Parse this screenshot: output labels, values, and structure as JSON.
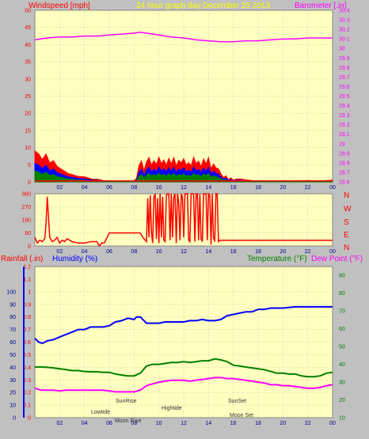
{
  "panel1": {
    "left_label": "Windspeed [mph]",
    "title": "24 hour graph day   December 25 2013",
    "right_label": "Barometer [.in]"
  },
  "panel2": {
    "compass": [
      "N",
      "W",
      "S",
      "E",
      "N"
    ]
  },
  "panel3": {
    "label_rainfall": "Rainfall (.in)",
    "label_humidity": "Humidity (%)",
    "label_temperature": "Temperature (°F)",
    "label_dewpoint": "Dew Point (°F)",
    "events": [
      "Lowtide",
      "SunRise",
      "Moon Rise",
      "Hightide",
      "SunSet",
      "Moon Set"
    ]
  },
  "colors": {
    "plot_bg": "#ffffc0",
    "wind": "#ff0000",
    "gust_mid": "#0000ff",
    "gust_low": "#008000",
    "barometer": "#ff00ff",
    "humidity": "#0000ff",
    "temperature": "#008000",
    "dewpoint": "#ff00ff"
  },
  "chart_data": [
    {
      "type": "line",
      "title": "24 hour graph day   December 25 2013",
      "ylabel": "Windspeed [mph]",
      "y2label": "Barometer [.in]",
      "ylim": [
        0,
        50
      ],
      "y2lim": [
        28.6,
        30.4
      ],
      "yticks": [
        "0",
        "5",
        "10",
        "15",
        "20",
        "25",
        "30",
        "35",
        "40",
        "45",
        "50"
      ],
      "y2ticks": [
        "28.6",
        "28.7",
        "28.8",
        "28.9",
        "29",
        "29.1",
        "29.2",
        "29.3",
        "29.4",
        "29.5",
        "29.6",
        "29.7",
        "29.8",
        "29.9",
        "30",
        "30.1",
        "30.2",
        "30.3",
        "30.4"
      ],
      "xlim": [
        0,
        24
      ],
      "xticks": [
        "02",
        "04",
        "06",
        "08",
        "10",
        "12",
        "14",
        "16",
        "18",
        "20",
        "22",
        "00"
      ],
      "grid": true,
      "series": [
        {
          "name": "Windspeed",
          "x": [
            0,
            0.3,
            0.6,
            0.9,
            1.2,
            1.5,
            1.8,
            2.1,
            2.4,
            2.7,
            3,
            3.3,
            3.6,
            4,
            4.3,
            4.6,
            5,
            5.3,
            5.6,
            6,
            6.5,
            7,
            7.5,
            8,
            8.2,
            8.4,
            8.6,
            8.8,
            9,
            9.2,
            9.4,
            9.6,
            9.8,
            10,
            10.2,
            10.4,
            10.6,
            10.8,
            11,
            11.2,
            11.4,
            11.6,
            11.8,
            12,
            12.2,
            12.4,
            12.6,
            12.8,
            13,
            13.2,
            13.4,
            13.6,
            13.8,
            14,
            14.2,
            14.4,
            14.6,
            14.8,
            15,
            15.2,
            15.4,
            15.6,
            15.8,
            16,
            16.2,
            16.5,
            17,
            18,
            19,
            20,
            21,
            22,
            23,
            24
          ],
          "y": [
            9,
            8.2,
            6.5,
            8.1,
            5.5,
            6.2,
            4.5,
            3.8,
            3.1,
            2.4,
            2.2,
            1.8,
            1.6,
            1.5,
            1.2,
            0.8,
            0.8,
            0.6,
            0.3,
            0.3,
            0.3,
            0.2,
            0.3,
            0.3,
            1.1,
            4.8,
            6.1,
            3.2,
            5.8,
            7.1,
            4.9,
            6.2,
            5.1,
            7.2,
            5.3,
            6.4,
            4.8,
            6.9,
            5.2,
            7.1,
            4.6,
            6.3,
            5.5,
            6.8,
            4.9,
            5.6,
            4.7,
            7.2,
            5.3,
            6.1,
            4.4,
            6.7,
            5.2,
            7.1,
            3.8,
            5.2,
            4.1,
            3.8,
            2.4,
            1.3,
            1.8,
            0.6,
            1.2,
            0.5,
            0.8,
            0.9,
            0.6,
            0.2,
            0.3,
            0.2,
            0.3,
            0.4,
            0.3,
            0.5
          ]
        },
        {
          "name": "Barometer",
          "x": [
            0,
            1,
            2,
            3,
            4,
            5,
            6,
            7,
            8,
            8.5,
            9,
            10,
            11,
            12,
            13,
            14,
            15,
            16,
            17,
            18,
            19,
            20,
            21,
            22,
            23,
            24
          ],
          "y": [
            30.09,
            30.11,
            30.12,
            30.12,
            30.13,
            30.13,
            30.14,
            30.15,
            30.16,
            30.17,
            30.16,
            30.14,
            30.12,
            30.11,
            30.09,
            30.08,
            30.07,
            30.07,
            30.08,
            30.08,
            30.09,
            30.1,
            30.1,
            30.11,
            30.11,
            30.11
          ]
        }
      ]
    },
    {
      "type": "line",
      "ylim": [
        0,
        360
      ],
      "yticks": [
        "0",
        "90",
        "180",
        "270",
        "360"
      ],
      "xlim": [
        0,
        24
      ],
      "xticks": [
        "02",
        "04",
        "06",
        "08",
        "10",
        "12",
        "14",
        "16",
        "18",
        "20",
        "22",
        "00"
      ],
      "grid": true,
      "series": [
        {
          "name": "Wind direction",
          "x": [
            0,
            0.2,
            0.4,
            0.6,
            0.8,
            0.9,
            1,
            1.2,
            1.4,
            1.6,
            1.8,
            2,
            2.2,
            2.4,
            2.6,
            2.8,
            3,
            3.5,
            4,
            4.5,
            5,
            5.2,
            5.4,
            5.6,
            6,
            7,
            8,
            8.5,
            8.7,
            9,
            9.1,
            9.2,
            9.3,
            9.4,
            9.5,
            9.6,
            9.7,
            9.8,
            9.9,
            10,
            10.1,
            10.2,
            10.3,
            10.4,
            10.5,
            10.6,
            10.7,
            10.8,
            10.9,
            11,
            11.1,
            11.2,
            11.3,
            11.4,
            11.5,
            11.6,
            11.7,
            11.8,
            11.9,
            12,
            12.1,
            12.2,
            12.3,
            12.4,
            12.5,
            12.6,
            12.7,
            12.8,
            12.9,
            13,
            13.1,
            13.2,
            13.3,
            13.4,
            13.5,
            13.6,
            13.7,
            13.8,
            13.9,
            14,
            14.1,
            14.2,
            14.3,
            14.4,
            14.5,
            14.6,
            14.7,
            14.8,
            14.9,
            15,
            15.5,
            16,
            17,
            18,
            20,
            22,
            24
          ],
          "y": [
            60,
            20,
            40,
            30,
            50,
            150,
            340,
            60,
            30,
            40,
            60,
            20,
            40,
            30,
            50,
            40,
            30,
            20,
            20,
            30,
            30,
            0,
            20,
            20,
            90,
            90,
            90,
            90,
            60,
            30,
            330,
            60,
            350,
            90,
            20,
            340,
            360,
            50,
            330,
            20,
            360,
            60,
            340,
            40,
            30,
            350,
            360,
            360,
            40,
            360,
            60,
            340,
            360,
            20,
            360,
            300,
            40,
            360,
            340,
            60,
            360,
            360,
            360,
            40,
            30,
            360,
            360,
            360,
            30,
            360,
            360,
            40,
            360,
            50,
            30,
            360,
            360,
            360,
            40,
            360,
            350,
            10,
            360,
            60,
            30,
            360,
            360,
            30,
            40,
            40,
            40,
            40,
            40,
            40,
            40,
            40,
            40
          ]
        }
      ]
    },
    {
      "type": "line",
      "ylabel": "Rainfall (.in)",
      "ylabel2": "Humidity (%)",
      "y2label": "Temperature (°F)",
      "y2label2": "Dew Point (°F)",
      "rain_ticks": [
        "0",
        "0.1",
        "0.2",
        "0.3",
        "0.4",
        "0.5",
        "0.6",
        "0.7",
        "0.8",
        "0.9",
        "1",
        "1.1",
        "1.2"
      ],
      "humidity_ticks": [
        "0",
        "10",
        "20",
        "30",
        "40",
        "50",
        "60",
        "70",
        "80",
        "90",
        "100"
      ],
      "y2lim": [
        10,
        95
      ],
      "y2ticks": [
        "10",
        "20",
        "30",
        "40",
        "50",
        "60",
        "70",
        "80",
        "90"
      ],
      "xlim": [
        0,
        24
      ],
      "xticks": [
        "02",
        "04",
        "06",
        "08",
        "10",
        "12",
        "14",
        "16",
        "18",
        "20",
        "22",
        "00"
      ],
      "grid": true,
      "events": [
        "Lowtide",
        "SunRise",
        "Moon Rise",
        "Hightide",
        "SunSet",
        "Moon Set"
      ],
      "series": [
        {
          "name": "Humidity",
          "x": [
            0,
            0.3,
            0.6,
            1,
            1.5,
            2,
            2.5,
            3,
            3.5,
            4,
            4.5,
            5,
            5.5,
            6,
            6.5,
            7,
            7.5,
            8,
            8.2,
            8.5,
            9,
            9.5,
            10,
            10.5,
            11,
            11.5,
            12,
            12.5,
            13,
            13.5,
            14,
            14.5,
            15,
            15.5,
            16,
            16.5,
            17,
            17.5,
            18,
            18.5,
            19,
            20,
            21,
            22,
            23,
            24
          ],
          "y": [
            63,
            60,
            59,
            61,
            62,
            64,
            66,
            68,
            70,
            70,
            72,
            72,
            72,
            73,
            76,
            77,
            79,
            78,
            80,
            80,
            75,
            75,
            75,
            76,
            76,
            76,
            76,
            77,
            77,
            78,
            77,
            77,
            78,
            81,
            82,
            83,
            84,
            84,
            86,
            86,
            87,
            87,
            88,
            88,
            88,
            88
          ]
        },
        {
          "name": "Temperature",
          "x": [
            0,
            0.5,
            1,
            1.5,
            2,
            2.5,
            3,
            3.5,
            4,
            4.5,
            5,
            5.5,
            6,
            6.5,
            7,
            7.5,
            8,
            8.5,
            9,
            9.5,
            10,
            10.5,
            11,
            11.5,
            12,
            12.5,
            13,
            13.5,
            14,
            14.5,
            15,
            15.5,
            16,
            16.5,
            17,
            17.5,
            18,
            18.5,
            19,
            19.5,
            20,
            20.5,
            21,
            21.5,
            22,
            22.5,
            23,
            23.5,
            24
          ],
          "y": [
            38.5,
            38.5,
            38.3,
            38,
            37.5,
            37,
            36.5,
            36.5,
            36,
            35.8,
            35.8,
            35.5,
            35.5,
            34.5,
            34,
            33.5,
            33.5,
            35,
            39,
            40,
            40,
            40.5,
            41,
            41,
            41.5,
            41,
            41.5,
            42,
            42,
            43,
            42.5,
            41.5,
            39.5,
            39,
            38.5,
            38,
            37.5,
            37,
            36,
            35,
            35,
            34.5,
            34.5,
            33.5,
            33,
            33,
            33.5,
            35,
            35.5
          ]
        },
        {
          "name": "Dew Point",
          "x": [
            0,
            0.5,
            1,
            1.5,
            2,
            2.5,
            3,
            3.5,
            4,
            4.5,
            5,
            5.5,
            6,
            6.5,
            7,
            7.5,
            8,
            8.5,
            9,
            9.5,
            10,
            10.5,
            11,
            11.5,
            12,
            12.5,
            13,
            13.5,
            14,
            14.5,
            15,
            15.5,
            16,
            16.5,
            17,
            17.5,
            18,
            18.5,
            19,
            19.5,
            20,
            20.5,
            21,
            21.5,
            22,
            22.5,
            23,
            23.5,
            24
          ],
          "y": [
            26.5,
            25.5,
            25.5,
            25.5,
            25,
            25.5,
            25.5,
            25.5,
            25.5,
            25.5,
            25.5,
            25.5,
            25,
            24.5,
            24.5,
            24.5,
            24.5,
            25.5,
            28,
            29,
            30,
            30.5,
            31,
            31,
            31,
            30.5,
            31,
            31.5,
            32,
            32.5,
            32.5,
            32,
            32,
            31.5,
            31,
            30.5,
            30,
            29.5,
            28.5,
            28.5,
            28,
            28,
            27.5,
            27,
            26.5,
            26.5,
            27,
            28,
            28.5
          ]
        }
      ]
    }
  ]
}
